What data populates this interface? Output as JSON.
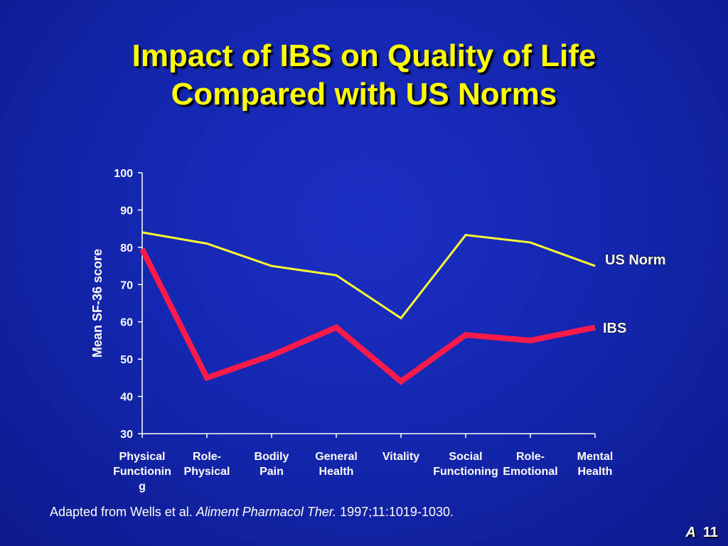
{
  "slide": {
    "title_line1": "Impact of IBS on Quality of Life",
    "title_line2": "Compared with US Norms",
    "citation_prefix": "Adapted from Wells et al. ",
    "citation_journal": "Aliment Pharmacol Ther.",
    "citation_suffix": " 1997;11:1019-1030.",
    "slide_label": "A",
    "slide_number": "11"
  },
  "chart_data": {
    "type": "line",
    "ylabel": "Mean SF-36 score",
    "ylim": [
      30,
      100
    ],
    "yticks": [
      30,
      40,
      50,
      60,
      70,
      80,
      90,
      100
    ],
    "categories": [
      [
        "Physical",
        "Functionin",
        "g"
      ],
      [
        "Role-",
        "Physical"
      ],
      [
        "Bodily",
        "Pain"
      ],
      [
        "General",
        "Health"
      ],
      [
        "Vitality"
      ],
      [
        "Social",
        "Functioning"
      ],
      [
        "Role-",
        "Emotional"
      ],
      [
        "Mental",
        "Health"
      ]
    ],
    "series": [
      {
        "name": "US Norm",
        "color": "#ffff33",
        "values": [
          84,
          81,
          75,
          72.5,
          61,
          83.3,
          81.3,
          75
        ]
      },
      {
        "name": "IBS",
        "color": "#ff1a4a",
        "values": [
          79.5,
          45,
          51,
          58.5,
          44,
          56.5,
          55,
          58.5
        ]
      }
    ],
    "grid": false,
    "legend": "inline-right"
  }
}
